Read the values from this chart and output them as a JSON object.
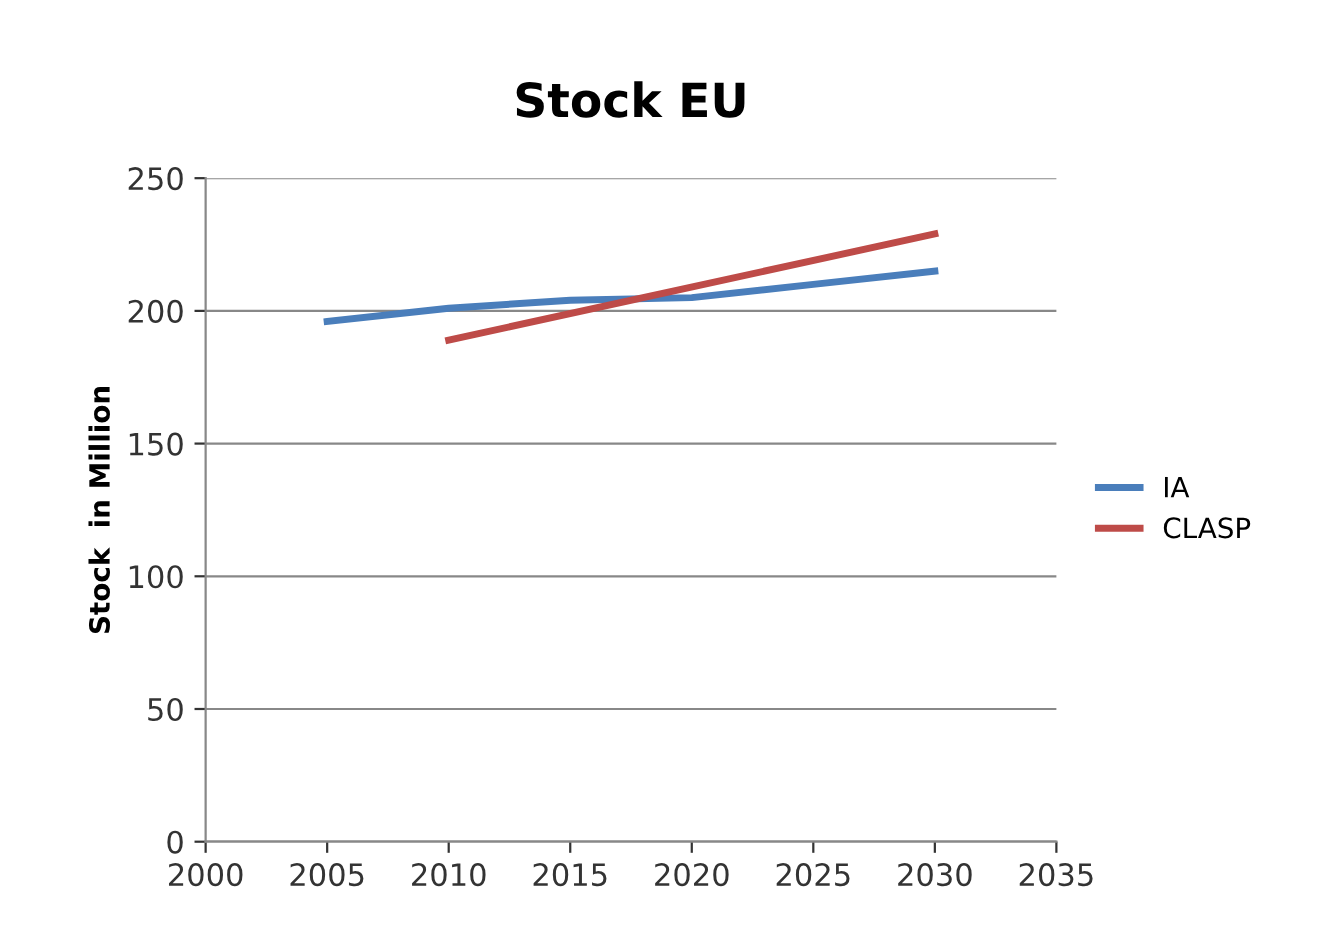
{
  "chart_data": {
    "type": "line",
    "title": "Stock EU",
    "ylabel": "Stock  in Million",
    "x": [
      2005,
      2010,
      2015,
      2020,
      2025,
      2030
    ],
    "series": [
      {
        "name": "IA",
        "color": "#4a7ebb",
        "values": [
          196,
          201,
          204,
          205,
          210,
          215
        ]
      },
      {
        "name": "CLASP",
        "color": "#be4b48",
        "x": [
          2010,
          2030
        ],
        "values": [
          189,
          229
        ]
      }
    ],
    "xlim": [
      2000,
      2035
    ],
    "xticks": [
      2000,
      2005,
      2010,
      2015,
      2020,
      2025,
      2030,
      2035
    ],
    "ylim": [
      0,
      250
    ],
    "yticks": [
      0,
      50,
      100,
      150,
      200,
      250
    ],
    "grid": "y",
    "legend": "right",
    "marker": "none",
    "line_style": "solid"
  }
}
